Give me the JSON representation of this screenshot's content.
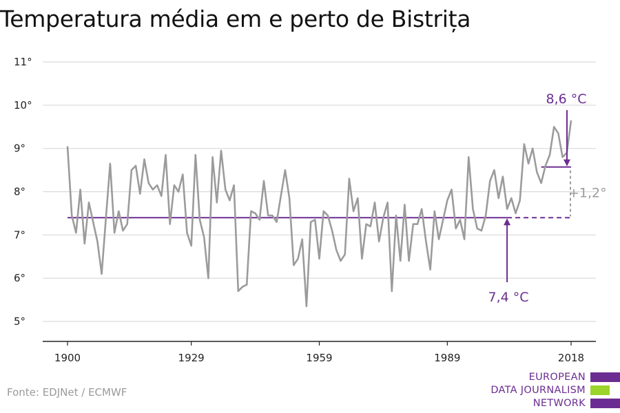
{
  "title": "Temperatura média em e perto de Bistrița",
  "source": "Fonte: EDJNet / ECMWF",
  "logo": {
    "lines": [
      "EUROPEAN",
      "DATA JOURNALISM",
      "NETWORK"
    ],
    "colors": [
      "#6b2d92",
      "#9bd42a",
      "#6b2d92"
    ]
  },
  "colors": {
    "series": "#9b9b9b",
    "accent": "#6b2d92",
    "grid": "#d9d9d9",
    "axis": "#222222",
    "delta": "#9b9b9b"
  },
  "chart_data": {
    "type": "line",
    "title": "Temperatura média em e perto de Bistrița",
    "xlabel": "",
    "ylabel": "",
    "xlim": [
      1900,
      2018
    ],
    "ylim": [
      5,
      11
    ],
    "x_ticks": [
      1900,
      1929,
      1959,
      1989,
      2018
    ],
    "y_ticks": [
      5,
      6,
      7,
      8,
      9,
      10,
      11
    ],
    "y_tick_suffix": "°",
    "grid": true,
    "series": [
      {
        "x": [
          1900,
          1901,
          1902,
          1903,
          1904,
          1905,
          1906,
          1907,
          1908,
          1909,
          1910,
          1911,
          1912,
          1913,
          1914,
          1915,
          1916,
          1917,
          1918,
          1919,
          1920,
          1921,
          1922,
          1923,
          1924,
          1925,
          1926,
          1927,
          1928,
          1929,
          1930,
          1931,
          1932,
          1933,
          1934,
          1935,
          1936,
          1937,
          1938,
          1939,
          1940,
          1941,
          1942,
          1943,
          1944,
          1945,
          1946,
          1947,
          1948,
          1949,
          1950,
          1951,
          1952,
          1953,
          1954,
          1955,
          1956,
          1957,
          1958,
          1959,
          1960,
          1961,
          1962,
          1963,
          1964,
          1965,
          1966,
          1967,
          1968,
          1969,
          1970,
          1971,
          1972,
          1973,
          1974,
          1975,
          1976,
          1977,
          1978,
          1979,
          1980,
          1981,
          1982,
          1983,
          1984,
          1985,
          1986,
          1987,
          1988,
          1989,
          1990,
          1991,
          1992,
          1993,
          1994,
          1995,
          1996,
          1997,
          1998,
          1999,
          2000,
          2001,
          2002,
          2003,
          2004,
          2005,
          2006,
          2007,
          2008,
          2009,
          2010,
          2011,
          2012,
          2013,
          2014,
          2015,
          2016,
          2017,
          2018
        ],
        "values": [
          9.05,
          7.45,
          7.05,
          8.05,
          6.8,
          7.75,
          7.3,
          6.85,
          6.1,
          7.4,
          8.65,
          7.05,
          7.55,
          7.1,
          7.25,
          8.5,
          8.6,
          7.95,
          8.75,
          8.2,
          8.05,
          8.15,
          7.9,
          8.85,
          7.25,
          8.15,
          8.0,
          8.4,
          7.05,
          6.75,
          8.85,
          7.35,
          6.95,
          6.0,
          8.8,
          7.75,
          8.95,
          8.05,
          7.8,
          8.15,
          5.7,
          5.8,
          5.85,
          7.55,
          7.5,
          7.35,
          8.25,
          7.45,
          7.45,
          7.3,
          7.9,
          8.5,
          7.85,
          6.3,
          6.45,
          6.9,
          5.35,
          7.3,
          7.35,
          6.45,
          7.55,
          7.45,
          7.1,
          6.65,
          6.4,
          6.55,
          8.3,
          7.55,
          7.85,
          6.45,
          7.25,
          7.2,
          7.75,
          6.85,
          7.4,
          7.75,
          5.7,
          7.45,
          6.4,
          7.7,
          6.4,
          7.25,
          7.25,
          7.6,
          6.85,
          6.2,
          7.55,
          6.9,
          7.35,
          7.8,
          8.05,
          7.15,
          7.35,
          6.9,
          8.8,
          7.6,
          7.15,
          7.1,
          7.45,
          8.25,
          8.5,
          7.85,
          8.35,
          7.6,
          7.85,
          7.5,
          7.8,
          9.1,
          8.65,
          9.0,
          8.45,
          8.2,
          8.6,
          8.85,
          9.5,
          9.35,
          8.8,
          8.9,
          9.65
        ]
      }
    ],
    "reference_lines": [
      {
        "label": "7,4 °C",
        "value": 7.4,
        "from": 1900,
        "to": 2018,
        "solid_to": 2003
      },
      {
        "label": "8,6 °C",
        "value": 8.57,
        "from": 2011,
        "to": 2018
      }
    ],
    "delta_label": "+1,2°"
  }
}
